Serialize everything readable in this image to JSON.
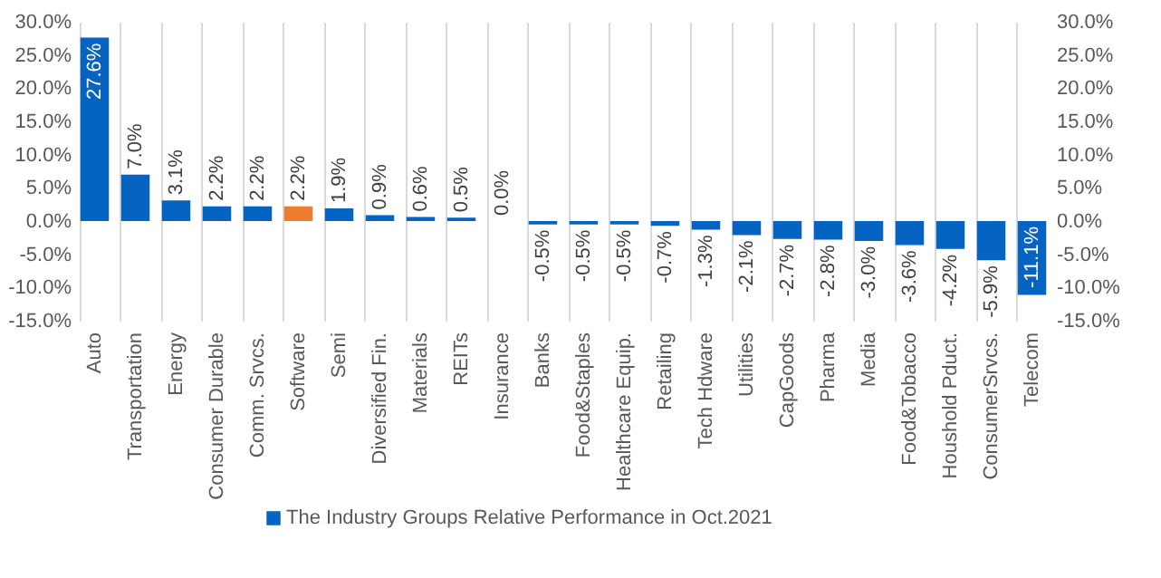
{
  "chart_data": {
    "type": "bar",
    "categories": [
      "Auto",
      "Transportation",
      "Energy",
      "Consumer Durable",
      "Comm. Srvcs.",
      "Software",
      "Semi",
      "Diversified Fin.",
      "Materials",
      "REITs",
      "Insurance",
      "Banks",
      "Food&Staples",
      "Healthcare Equip.",
      "Retailing",
      "Tech Hdware",
      "Utilities",
      "CapGoods",
      "Pharma",
      "Media",
      "Food&Tobacco",
      "Houshold Pduct.",
      "ConsumerSrvcs.",
      "Telecom"
    ],
    "series": [
      {
        "name": "The Industry Groups Relative Performance in Oct.2021",
        "color": "#0563c1",
        "colors": [
          "#0563c1",
          "#0563c1",
          "#0563c1",
          "#0563c1",
          "#0563c1",
          "#ed7d31",
          "#0563c1",
          "#0563c1",
          "#0563c1",
          "#0563c1",
          "#0563c1",
          "#0563c1",
          "#0563c1",
          "#0563c1",
          "#0563c1",
          "#0563c1",
          "#0563c1",
          "#0563c1",
          "#0563c1",
          "#0563c1",
          "#0563c1",
          "#0563c1",
          "#0563c1",
          "#0563c1"
        ],
        "values": [
          27.6,
          7.0,
          3.1,
          2.2,
          2.2,
          2.2,
          1.9,
          0.9,
          0.6,
          0.5,
          0.0,
          -0.5,
          -0.5,
          -0.5,
          -0.7,
          -1.3,
          -2.1,
          -2.7,
          -2.8,
          -3.0,
          -3.6,
          -4.2,
          -5.9,
          -11.1
        ],
        "value_labels": [
          "27.6%",
          "7.0%",
          "3.1%",
          "2.2%",
          "2.2%",
          "2.2%",
          "1.9%",
          "0.9%",
          "0.6%",
          "0.5%",
          "0.0%",
          "-0.5%",
          "-0.5%",
          "-0.5%",
          "-0.7%",
          "-1.3%",
          "-2.1%",
          "-2.7%",
          "-2.8%",
          "-3.0%",
          "-3.6%",
          "-4.2%",
          "-5.9%",
          "-11.1%"
        ]
      }
    ],
    "ylim": [
      -15,
      30
    ],
    "yticks": [
      {
        "value": -15,
        "label": "-15.0%"
      },
      {
        "value": -10,
        "label": "-10.0%"
      },
      {
        "value": -5,
        "label": "-5.0%"
      },
      {
        "value": 0,
        "label": "0.0%"
      },
      {
        "value": 5,
        "label": "5.0%"
      },
      {
        "value": 10,
        "label": "10.0%"
      },
      {
        "value": 15,
        "label": "15.0%"
      },
      {
        "value": 20,
        "label": "20.0%"
      },
      {
        "value": 25,
        "label": "25.0%"
      },
      {
        "value": 30,
        "label": "30.0%"
      }
    ],
    "y2lim": [
      -15,
      30
    ],
    "y2ticks": [
      {
        "value": -15,
        "label": "-15.0%"
      },
      {
        "value": -10,
        "label": "-10.0%"
      },
      {
        "value": -5,
        "label": "-5.0%"
      },
      {
        "value": 0,
        "label": "0.0%"
      },
      {
        "value": 5,
        "label": "5.0%"
      },
      {
        "value": 10,
        "label": "10.0%"
      },
      {
        "value": 15,
        "label": "15.0%"
      },
      {
        "value": 20,
        "label": "20.0%"
      },
      {
        "value": 25,
        "label": "25.0%"
      },
      {
        "value": 30,
        "label": "30.0%"
      }
    ],
    "grid": "x",
    "legend": "bottom"
  }
}
